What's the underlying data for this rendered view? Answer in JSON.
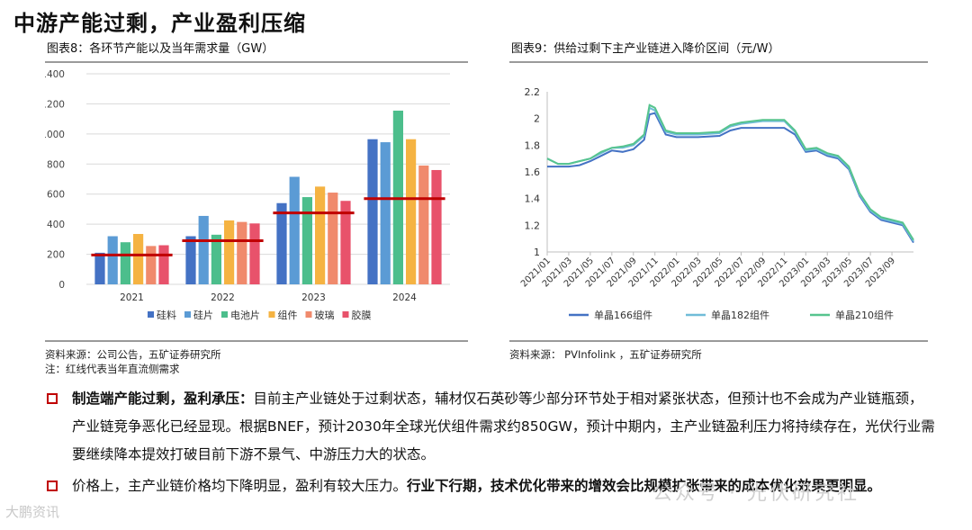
{
  "page": {
    "title": "中游产能过剩，产业盈利压缩"
  },
  "left_panel": {
    "heading": "图表8：各环节产能以及当年需求量（GW）",
    "source": "资料来源：公司公告，五矿证券研究所",
    "note": "注：红线代表当年直流侧需求"
  },
  "right_panel": {
    "heading": "图表9：供给过剩下主产业链进入降价区间（元/W）",
    "source": "资料来源： PVInfolink ，五矿证券研究所"
  },
  "bullets": [
    {
      "lead": "制造端产能过剩，盈利承压：",
      "text": "目前主产业链处于过剩状态，辅材仅石英砂等少部分环节处于相对紧张状态，但预计也不会成为产业链瓶颈，产业链竞争恶化已经显现。根据BNEF，预计2030年全球光伏组件需求约850GW，预计中期内，主产业链盈利压力将持续存在，光伏行业需要继续降本提效打破目前下游不景气、中游压力大的状态。"
    },
    {
      "text": "价格上，主产业链价格均下降明显，盈利有较大压力。",
      "tail": "行业下行期，技术优化带来的增效会比规模扩张带来的成本优化效果更明显。"
    }
  ],
  "watermarks": {
    "left": "大鹏资讯",
    "right": "公众号 · 光伏研究社"
  },
  "colors": {
    "accent": "#c00000",
    "series": [
      "#4472c4",
      "#5b9bd5",
      "#4cbe8c",
      "#f5b342",
      "#f08a6c",
      "#e8526b"
    ],
    "demand_line": "#c00000",
    "line_166": "#4472c4",
    "line_182": "#70bcd8",
    "line_210": "#56c48e"
  },
  "chart_data": [
    {
      "type": "bar",
      "categories": [
        "2021",
        "2022",
        "2023",
        "2024"
      ],
      "series": [
        {
          "name": "硅料",
          "values": [
            210,
            320,
            540,
            965
          ]
        },
        {
          "name": "硅片",
          "values": [
            320,
            455,
            715,
            945
          ]
        },
        {
          "name": "电池片",
          "values": [
            280,
            330,
            580,
            1155
          ]
        },
        {
          "name": "组件",
          "values": [
            335,
            425,
            650,
            965
          ]
        },
        {
          "name": "玻璃",
          "values": [
            255,
            415,
            610,
            790
          ]
        },
        {
          "name": "胶膜",
          "values": [
            260,
            405,
            555,
            760
          ]
        }
      ],
      "demand_values": [
        195,
        290,
        475,
        570
      ],
      "ylim": [
        0,
        1400
      ],
      "yticks": [
        0,
        200,
        400,
        600,
        800,
        1000,
        1200,
        1400
      ],
      "legend": "bottom",
      "grid": true
    },
    {
      "type": "line",
      "x_ticks": [
        "2021/01",
        "2021/03",
        "2021/05",
        "2021/07",
        "2021/09",
        "2021/11",
        "2022/01",
        "2022/03",
        "2022/05",
        "2022/07",
        "2022/09",
        "2022/11",
        "2023/01",
        "2023/03",
        "2023/05",
        "2023/07",
        "2023/09"
      ],
      "ylim": [
        1,
        2.2
      ],
      "yticks": [
        "1",
        "1.2",
        "1.4",
        "1.6",
        "1.8",
        "2",
        "2.2"
      ],
      "legend": "bottom",
      "grid": false,
      "x_start": "2021/01",
      "x_end": "2023/11",
      "series": [
        {
          "name": "单晶166组件",
          "points": [
            [
              "2021/01",
              1.64
            ],
            [
              "2021/02",
              1.64
            ],
            [
              "2021/03",
              1.64
            ],
            [
              "2021/04",
              1.65
            ],
            [
              "2021/05",
              1.68
            ],
            [
              "2021/06",
              1.72
            ],
            [
              "2021/07",
              1.76
            ],
            [
              "2021/08",
              1.75
            ],
            [
              "2021/09",
              1.77
            ],
            [
              "2021/10",
              1.84
            ],
            [
              "2021/10",
              2.03
            ],
            [
              "2021/11",
              2.04
            ],
            [
              "2021/12",
              1.88
            ],
            [
              "2022/01",
              1.86
            ],
            [
              "2022/03",
              1.86
            ],
            [
              "2022/05",
              1.87
            ],
            [
              "2022/06",
              1.91
            ],
            [
              "2022/07",
              1.93
            ],
            [
              "2022/09",
              1.93
            ],
            [
              "2022/11",
              1.93
            ],
            [
              "2022/12",
              1.88
            ],
            [
              "2023/01",
              1.75
            ],
            [
              "2023/02",
              1.76
            ],
            [
              "2023/03",
              1.72
            ],
            [
              "2023/04",
              1.7
            ],
            [
              "2023/05",
              1.62
            ],
            [
              "2023/06",
              1.42
            ],
            [
              "2023/07",
              1.3
            ],
            [
              "2023/08",
              1.24
            ],
            [
              "2023/09",
              1.22
            ],
            [
              "2023/10",
              1.2
            ],
            [
              "2023/11",
              1.07
            ]
          ]
        },
        {
          "name": "单晶182组件",
          "points": [
            [
              "2021/01",
              1.7
            ],
            [
              "2021/02",
              1.66
            ],
            [
              "2021/03",
              1.66
            ],
            [
              "2021/04",
              1.68
            ],
            [
              "2021/05",
              1.7
            ],
            [
              "2021/06",
              1.74
            ],
            [
              "2021/07",
              1.78
            ],
            [
              "2021/08",
              1.78
            ],
            [
              "2021/09",
              1.8
            ],
            [
              "2021/10",
              1.87
            ],
            [
              "2021/10",
              2.08
            ],
            [
              "2021/11",
              2.06
            ],
            [
              "2021/12",
              1.9
            ],
            [
              "2022/01",
              1.88
            ],
            [
              "2022/03",
              1.88
            ],
            [
              "2022/05",
              1.89
            ],
            [
              "2022/06",
              1.94
            ],
            [
              "2022/07",
              1.96
            ],
            [
              "2022/09",
              1.98
            ],
            [
              "2022/11",
              1.98
            ],
            [
              "2022/12",
              1.9
            ],
            [
              "2023/01",
              1.76
            ],
            [
              "2023/02",
              1.77
            ],
            [
              "2023/03",
              1.73
            ],
            [
              "2023/04",
              1.71
            ],
            [
              "2023/05",
              1.63
            ],
            [
              "2023/06",
              1.43
            ],
            [
              "2023/07",
              1.31
            ],
            [
              "2023/08",
              1.25
            ],
            [
              "2023/09",
              1.23
            ],
            [
              "2023/10",
              1.21
            ],
            [
              "2023/11",
              1.08
            ]
          ]
        },
        {
          "name": "单晶210组件",
          "points": [
            [
              "2021/01",
              1.7
            ],
            [
              "2021/02",
              1.66
            ],
            [
              "2021/03",
              1.66
            ],
            [
              "2021/04",
              1.68
            ],
            [
              "2021/05",
              1.7
            ],
            [
              "2021/06",
              1.75
            ],
            [
              "2021/07",
              1.78
            ],
            [
              "2021/08",
              1.79
            ],
            [
              "2021/09",
              1.81
            ],
            [
              "2021/10",
              1.88
            ],
            [
              "2021/10",
              2.1
            ],
            [
              "2021/11",
              2.08
            ],
            [
              "2021/12",
              1.91
            ],
            [
              "2022/01",
              1.89
            ],
            [
              "2022/03",
              1.89
            ],
            [
              "2022/05",
              1.9
            ],
            [
              "2022/06",
              1.95
            ],
            [
              "2022/07",
              1.97
            ],
            [
              "2022/09",
              1.99
            ],
            [
              "2022/11",
              1.99
            ],
            [
              "2022/12",
              1.91
            ],
            [
              "2023/01",
              1.77
            ],
            [
              "2023/02",
              1.78
            ],
            [
              "2023/03",
              1.74
            ],
            [
              "2023/04",
              1.72
            ],
            [
              "2023/05",
              1.64
            ],
            [
              "2023/06",
              1.44
            ],
            [
              "2023/07",
              1.32
            ],
            [
              "2023/08",
              1.26
            ],
            [
              "2023/09",
              1.24
            ],
            [
              "2023/10",
              1.22
            ],
            [
              "2023/11",
              1.09
            ]
          ]
        }
      ]
    }
  ]
}
